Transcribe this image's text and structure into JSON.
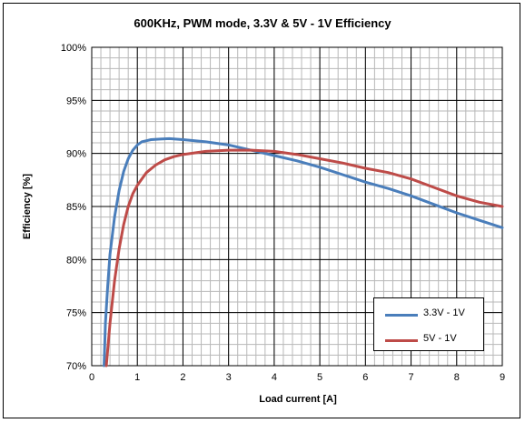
{
  "chart_data": {
    "type": "line",
    "title": "600KHz, PWM mode, 3.3V & 5V -  1V  Efficiency",
    "xlabel": "Load current [A]",
    "ylabel": "Efficiency [%]",
    "xlim": [
      0,
      9
    ],
    "ylim": [
      70,
      100
    ],
    "x_ticks": [
      "0",
      "1",
      "2",
      "3",
      "4",
      "5",
      "6",
      "7",
      "8",
      "9"
    ],
    "y_ticks": [
      "70%",
      "75%",
      "80%",
      "85%",
      "90%",
      "95%",
      "100%"
    ],
    "grid": true,
    "legend_position": "bottom-right",
    "series": [
      {
        "name": "3.3V - 1V",
        "color": "#4a7ebb",
        "x": [
          0.27,
          0.3,
          0.35,
          0.4,
          0.5,
          0.6,
          0.7,
          0.8,
          0.9,
          1.0,
          1.1,
          1.2,
          1.3,
          1.5,
          1.7,
          2.0,
          2.5,
          3.0,
          3.5,
          4.0,
          4.5,
          5.0,
          5.5,
          6.0,
          6.5,
          7.0,
          7.5,
          8.0,
          8.5,
          9.0
        ],
        "y": [
          70.0,
          74.0,
          77.5,
          80.5,
          84.0,
          86.5,
          88.3,
          89.5,
          90.3,
          90.8,
          91.1,
          91.2,
          91.3,
          91.35,
          91.4,
          91.3,
          91.1,
          90.8,
          90.3,
          89.8,
          89.3,
          88.7,
          88.0,
          87.3,
          86.7,
          86.0,
          85.2,
          84.4,
          83.7,
          83.0
        ]
      },
      {
        "name": "5V - 1V",
        "color": "#be4b48",
        "x": [
          0.32,
          0.35,
          0.4,
          0.5,
          0.6,
          0.7,
          0.8,
          0.9,
          1.0,
          1.2,
          1.4,
          1.6,
          1.8,
          2.0,
          2.5,
          3.0,
          3.5,
          4.0,
          4.5,
          5.0,
          5.5,
          6.0,
          6.5,
          7.0,
          7.5,
          8.0,
          8.5,
          9.0
        ],
        "y": [
          70.0,
          71.5,
          74.0,
          78.0,
          81.0,
          83.3,
          85.0,
          86.2,
          87.0,
          88.2,
          88.9,
          89.4,
          89.7,
          89.9,
          90.2,
          90.3,
          90.3,
          90.2,
          89.9,
          89.5,
          89.1,
          88.6,
          88.2,
          87.6,
          86.8,
          86.0,
          85.4,
          85.0
        ]
      }
    ]
  }
}
